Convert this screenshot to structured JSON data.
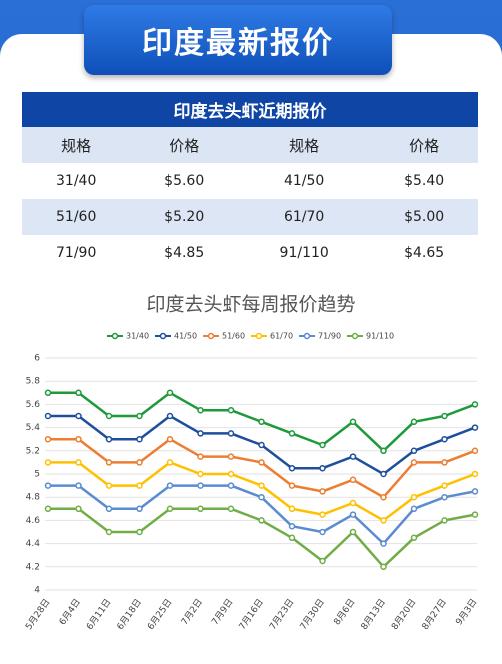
{
  "header": {
    "title": "印度最新报价"
  },
  "table": {
    "title": "印度去头虾近期报价",
    "header": [
      "规格",
      "价格",
      "规格",
      "价格"
    ],
    "rows": [
      [
        "31/40",
        "$5.60",
        "41/50",
        "$5.40"
      ],
      [
        "51/60",
        "$5.20",
        "61/70",
        "$5.00"
      ],
      [
        "71/90",
        "$4.85",
        "91/110",
        "$4.65"
      ]
    ]
  },
  "chart_data": {
    "type": "line",
    "title": "印度去头虾每周报价趋势",
    "categories": [
      "5月28日",
      "6月4日",
      "6月11日",
      "6月18日",
      "6月25日",
      "7月2日",
      "7月9日",
      "7月16日",
      "7月23日",
      "7月30日",
      "8月6日",
      "8月13日",
      "8月20日",
      "8月27日",
      "9月3日"
    ],
    "series": [
      {
        "name": "31/40",
        "color": "#1e9a3c",
        "values": [
          5.7,
          5.7,
          5.5,
          5.5,
          5.7,
          5.55,
          5.55,
          5.45,
          5.35,
          5.25,
          5.45,
          5.2,
          5.45,
          5.5,
          5.6
        ]
      },
      {
        "name": "41/50",
        "color": "#1f4e9c",
        "values": [
          5.5,
          5.5,
          5.3,
          5.3,
          5.5,
          5.35,
          5.35,
          5.25,
          5.05,
          5.05,
          5.15,
          5.0,
          5.2,
          5.3,
          5.4
        ]
      },
      {
        "name": "51/60",
        "color": "#ed7d31",
        "values": [
          5.3,
          5.3,
          5.1,
          5.1,
          5.3,
          5.15,
          5.15,
          5.1,
          4.9,
          4.85,
          4.95,
          4.8,
          5.1,
          5.1,
          5.2
        ]
      },
      {
        "name": "61/70",
        "color": "#ffc000",
        "values": [
          5.1,
          5.1,
          4.9,
          4.9,
          5.1,
          5.0,
          5.0,
          4.9,
          4.7,
          4.65,
          4.75,
          4.6,
          4.8,
          4.9,
          5.0
        ]
      },
      {
        "name": "71/90",
        "color": "#5b8bd0",
        "values": [
          4.9,
          4.9,
          4.7,
          4.7,
          4.9,
          4.9,
          4.9,
          4.8,
          4.55,
          4.5,
          4.65,
          4.4,
          4.7,
          4.8,
          4.85
        ]
      },
      {
        "name": "91/110",
        "color": "#70ad47",
        "values": [
          4.7,
          4.7,
          4.5,
          4.5,
          4.7,
          4.7,
          4.7,
          4.6,
          4.45,
          4.25,
          4.5,
          4.2,
          4.45,
          4.6,
          4.65
        ]
      }
    ],
    "ylim": [
      4,
      6
    ],
    "yticks": [
      4,
      4.2,
      4.4,
      4.6,
      4.8,
      5,
      5.2,
      5.4,
      5.6,
      5.8,
      6
    ],
    "grid": true
  }
}
